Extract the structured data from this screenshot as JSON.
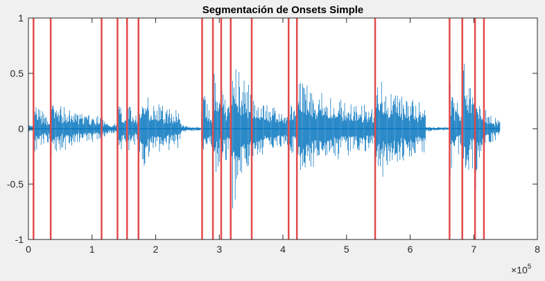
{
  "chart_data": {
    "type": "line",
    "title": "Segmentación de Onsets Simple",
    "xlabel": "",
    "ylabel": "",
    "xlim": [
      0,
      800000
    ],
    "ylim": [
      -1,
      1
    ],
    "x_exponent_label": "×10",
    "x_exponent_power": "5",
    "grid": false,
    "x_ticks": [
      {
        "value": 0,
        "label": "0"
      },
      {
        "value": 100000,
        "label": "1"
      },
      {
        "value": 200000,
        "label": "2"
      },
      {
        "value": 300000,
        "label": "3"
      },
      {
        "value": 400000,
        "label": "4"
      },
      {
        "value": 500000,
        "label": "5"
      },
      {
        "value": 600000,
        "label": "6"
      },
      {
        "value": 700000,
        "label": "7"
      },
      {
        "value": 800000,
        "label": "8"
      }
    ],
    "y_ticks": [
      {
        "value": -1,
        "label": "-1"
      },
      {
        "value": -0.5,
        "label": "-0.5"
      },
      {
        "value": 0,
        "label": "0"
      },
      {
        "value": 0.5,
        "label": "0.5"
      },
      {
        "value": 1,
        "label": "1"
      }
    ],
    "series": [
      {
        "kind": "waveform",
        "color": "#0072bd",
        "x_end": 741000,
        "segments": [
          {
            "start": 0,
            "end": 8000,
            "amplitude": 0.05
          },
          {
            "start": 8000,
            "end": 35000,
            "amplitude": 0.26
          },
          {
            "start": 35000,
            "end": 115000,
            "amplitude": 0.25
          },
          {
            "start": 115000,
            "end": 140000,
            "amplitude": 0.1
          },
          {
            "start": 140000,
            "end": 155000,
            "amplitude": 0.3
          },
          {
            "start": 155000,
            "end": 172000,
            "amplitude": 0.28
          },
          {
            "start": 172000,
            "end": 240000,
            "amplitude": 0.37
          },
          {
            "start": 240000,
            "end": 272000,
            "amplitude": 0.04
          },
          {
            "start": 272000,
            "end": 290000,
            "amplitude": 0.38
          },
          {
            "start": 290000,
            "end": 303000,
            "amplitude": 0.6
          },
          {
            "start": 303000,
            "end": 318000,
            "amplitude": 0.48
          },
          {
            "start": 318000,
            "end": 351000,
            "amplitude": 0.8
          },
          {
            "start": 351000,
            "end": 408000,
            "amplitude": 0.35
          },
          {
            "start": 408000,
            "end": 422000,
            "amplitude": 0.36
          },
          {
            "start": 422000,
            "end": 545000,
            "amplitude": 0.45
          },
          {
            "start": 545000,
            "end": 625000,
            "amplitude": 0.5
          },
          {
            "start": 625000,
            "end": 662000,
            "amplitude": 0.03
          },
          {
            "start": 662000,
            "end": 682000,
            "amplitude": 0.42
          },
          {
            "start": 682000,
            "end": 702000,
            "amplitude": 0.7
          },
          {
            "start": 702000,
            "end": 715000,
            "amplitude": 0.55
          },
          {
            "start": 715000,
            "end": 741000,
            "amplitude": 0.2
          }
        ]
      },
      {
        "kind": "onset_lines",
        "color": "#e34a4a",
        "x": [
          8000,
          35000,
          115000,
          140000,
          155000,
          173000,
          273000,
          290000,
          303000,
          318000,
          351000,
          409000,
          422000,
          545000,
          662000,
          682000,
          702000,
          716000
        ]
      }
    ],
    "colors": {
      "figure_background": "#f0f0f0",
      "axes_background": "#ffffff",
      "axes_color": "#262626"
    }
  }
}
